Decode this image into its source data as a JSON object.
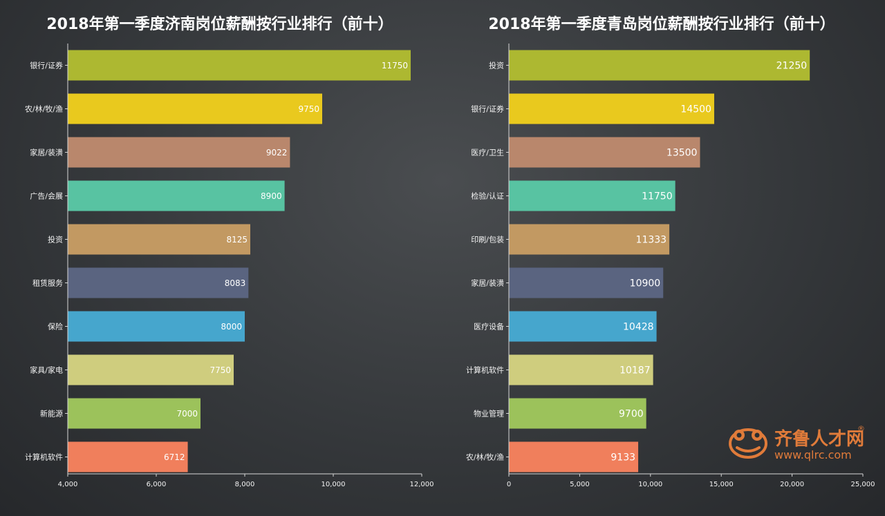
{
  "chart_data": [
    {
      "type": "bar",
      "orientation": "horizontal",
      "title": "2018年第一季度济南岗位薪酬按行业排行（前十）",
      "categories": [
        "银行/证券",
        "农/林/牧/渔",
        "家居/装潢",
        "广告/会展",
        "投资",
        "租赁服务",
        "保险",
        "家具/家电",
        "新能源",
        "计算机软件"
      ],
      "values": [
        11750,
        9750,
        9022,
        8900,
        8125,
        8083,
        8000,
        7750,
        7000,
        6712
      ],
      "colors": [
        "#adb831",
        "#e9c91e",
        "#b9876c",
        "#58c3a2",
        "#c29962",
        "#5a6480",
        "#46a6cd",
        "#cfcd7e",
        "#9cc25b",
        "#f07f5c"
      ],
      "xlim": [
        4000,
        12000
      ],
      "x_ticks": [
        "4,000",
        "6,000",
        "8,000",
        "10,000",
        "12,000"
      ],
      "x_tick_values": [
        4000,
        6000,
        8000,
        10000,
        12000
      ],
      "grid": false
    },
    {
      "type": "bar",
      "orientation": "horizontal",
      "title": "2018年第一季度青岛岗位薪酬按行业排行（前十）",
      "categories": [
        "投资",
        "银行/证券",
        "医疗/卫生",
        "检验/认证",
        "印刷/包装",
        "家居/装潢",
        "医疗设备",
        "计算机软件",
        "物业管理",
        "农/林/牧/渔"
      ],
      "values": [
        21250,
        14500,
        13500,
        11750,
        11333,
        10900,
        10428,
        10187,
        9700,
        9133
      ],
      "colors": [
        "#adb831",
        "#e9c91e",
        "#b9876c",
        "#58c3a2",
        "#c29962",
        "#5a6480",
        "#46a6cd",
        "#cfcd7e",
        "#9cc25b",
        "#f07f5c"
      ],
      "xlim": [
        0,
        25000
      ],
      "x_ticks": [
        "0",
        "5,000",
        "10,000",
        "15,000",
        "20,000",
        "25,000"
      ],
      "x_tick_values": [
        0,
        5000,
        10000,
        15000,
        20000,
        25000
      ],
      "grid": false
    }
  ],
  "watermark": {
    "name": "齐鲁人才网",
    "url": "www.qlrc.com",
    "registered_mark": "®",
    "color": "#e07b3a"
  }
}
